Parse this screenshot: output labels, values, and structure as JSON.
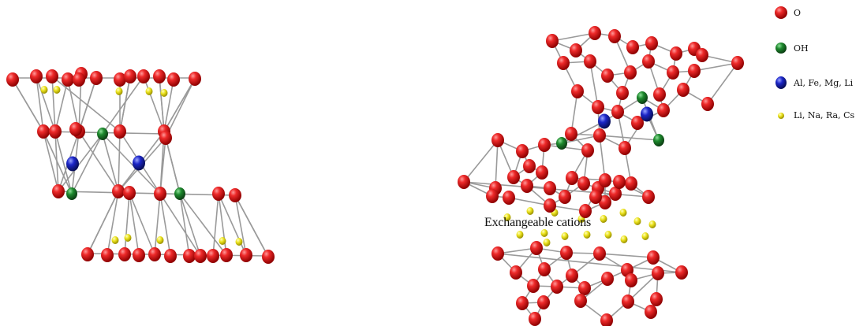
{
  "legend": {
    "items": [
      {
        "label": "O",
        "icon": "red-sphere-icon",
        "color": "#e01010"
      },
      {
        "label": "OH",
        "icon": "green-sphere-icon",
        "color": "#1e8a2e"
      },
      {
        "label": "Al, Fe, Mg, Li",
        "icon": "blue-sphere-icon",
        "color": "#1c26c8"
      },
      {
        "label": "Li, Na, Ra, Cs",
        "icon": "yellow-sphere-icon",
        "color": "#e8e020"
      }
    ]
  },
  "annotation": {
    "exchangeable": "Exchangeable cations"
  },
  "colors": {
    "oxygen": "#e01010",
    "hydroxyl": "#1e8a2e",
    "octahedral_cation": "#1c26c8",
    "interlayer_cation": "#e8e020",
    "bond": "#9a9a9a"
  }
}
